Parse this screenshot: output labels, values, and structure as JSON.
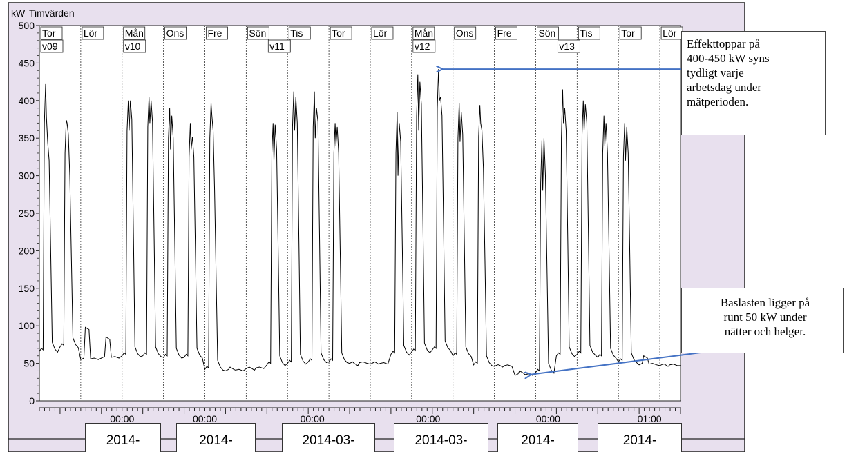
{
  "chart_data": {
    "type": "line",
    "title": "Timvärden",
    "ylabel": "kW",
    "ylim": [
      0,
      500
    ],
    "yticks": [
      0,
      50,
      100,
      150,
      200,
      250,
      300,
      350,
      400,
      450,
      500
    ],
    "grid": "vertical dotted day separators",
    "day_labels": [
      "Tor",
      "Lör",
      "Mån",
      "Ons",
      "Fre",
      "Sön",
      "Tis",
      "Tor",
      "Lör",
      "Mån",
      "Ons",
      "Fre",
      "Sön",
      "Tis",
      "Tor",
      "Lör"
    ],
    "week_labels": [
      "v09",
      "v10",
      "v11",
      "v12",
      "v13"
    ],
    "time_labels": [
      "00:00",
      "00:00",
      "00:00",
      "00:00",
      "00:00",
      "01:00"
    ],
    "date_labels": [
      "2014-",
      "2014-",
      "2014-03-",
      "2014-03-",
      "2014-",
      "2014-"
    ],
    "series": [
      {
        "color": "#000000",
        "days": [
          {
            "type": "work",
            "base": 66,
            "p": [
              400,
              422,
              378,
              345,
              320
            ]
          },
          {
            "type": "work",
            "base": 72,
            "p": [
              360,
              374,
              370,
              355,
              300
            ]
          },
          {
            "type": "weekend",
            "base": 55,
            "bump": 98
          },
          {
            "type": "weekend",
            "base": 57,
            "bump": 85
          },
          {
            "type": "work",
            "base": 60,
            "p": [
              390,
              400,
              360,
              400,
              375
            ]
          },
          {
            "type": "work",
            "base": 60,
            "p": [
              395,
              405,
              370,
              400,
              372
            ]
          },
          {
            "type": "work",
            "base": 58,
            "p": [
              380,
              390,
              335,
              380,
              350
            ]
          },
          {
            "type": "work",
            "base": 58,
            "p": [
              355,
              370,
              335,
              352,
              325
            ]
          },
          {
            "type": "work",
            "base": 42,
            "p": [
              380,
              397,
              380,
              360,
              280
            ]
          },
          {
            "type": "weekend",
            "base": 40,
            "bump": 45
          },
          {
            "type": "weekend",
            "base": 43,
            "bump": 44
          },
          {
            "type": "work",
            "base": 48,
            "p": [
              360,
              370,
              320,
              368,
              335
            ]
          },
          {
            "type": "work",
            "base": 50,
            "p": [
              395,
              412,
              360,
              405,
              370
            ]
          },
          {
            "type": "work",
            "base": 52,
            "p": [
              395,
              412,
              350,
              390,
              372
            ]
          },
          {
            "type": "work",
            "base": 52,
            "p": [
              360,
              370,
              340,
              365,
              330
            ]
          },
          {
            "type": "weekend",
            "base": 50,
            "bump": 50
          },
          {
            "type": "weekend",
            "base": 49,
            "bump": 52
          },
          {
            "type": "work",
            "base": 62,
            "p": [
              360,
              385,
              300,
              370,
              345
            ]
          },
          {
            "type": "work",
            "base": 65,
            "p": [
              410,
              435,
              360,
              425,
              395
            ]
          },
          {
            "type": "work",
            "base": 68,
            "p": [
              420,
              442,
              400,
              405,
              380
            ]
          },
          {
            "type": "work",
            "base": 60,
            "p": [
              380,
              397,
              345,
              385,
              355
            ]
          },
          {
            "type": "work",
            "base": 48,
            "p": [
              382,
              394,
              370,
              360,
              310
            ]
          },
          {
            "type": "weekend",
            "base": 46,
            "bump": 48
          },
          {
            "type": "weekend",
            "base": 34,
            "bump": 40
          },
          {
            "type": "work",
            "base": 38,
            "p": [
              320,
              347,
              280,
              350,
              300
            ]
          },
          {
            "type": "work",
            "base": 60,
            "p": [
              380,
              415,
              370,
              390,
              360
            ]
          },
          {
            "type": "work",
            "base": 62,
            "p": [
              385,
              400,
              360,
              395,
              370
            ]
          },
          {
            "type": "work",
            "base": 58,
            "p": [
              360,
              380,
              340,
              370,
              330
            ]
          },
          {
            "type": "work",
            "base": 52,
            "p": [
              355,
              370,
              320,
              365,
              330
            ]
          },
          {
            "type": "weekend",
            "base": 48,
            "bump": 60
          },
          {
            "type": "weekend",
            "base": 47,
            "bump": 49
          }
        ]
      }
    ],
    "annotations": [
      {
        "id": "peaks",
        "text": "Effekttoppar på\n400-450 kW syns\ntydligt varje\narbetsdag under\nmätperioden.",
        "target_value": 442
      },
      {
        "id": "base",
        "text": "Baslasten ligger på\nrunt 50 kW under\nnätter och helger.",
        "target_value": 35
      }
    ]
  }
}
